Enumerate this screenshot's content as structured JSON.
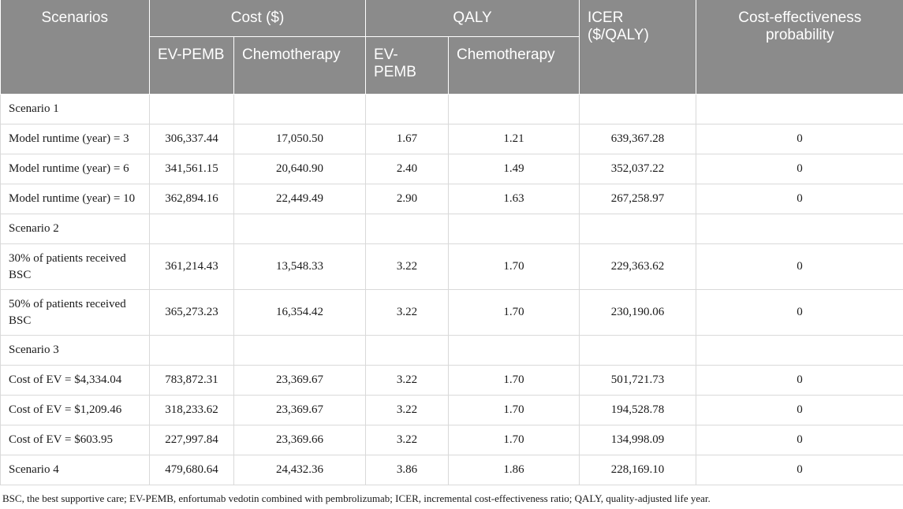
{
  "header": {
    "scenarios": "Scenarios",
    "cost": "Cost ($)",
    "qaly": "QALY",
    "icer": "ICER ($/QALY)",
    "probability": "Cost-effectiveness probability",
    "sub": {
      "cost_evpemb": "EV-PEMB",
      "cost_chemo": "Chemotherapy",
      "qaly_evpemb": "EV-PEMB",
      "qaly_chemo": "Chemotherapy"
    }
  },
  "rows": [
    {
      "label": "Scenario 1",
      "cost_evpemb": "",
      "cost_chemo": "",
      "qaly_evpemb": "",
      "qaly_chemo": "",
      "icer": "",
      "prob": ""
    },
    {
      "label": "Model runtime (year) = 3",
      "cost_evpemb": "306,337.44",
      "cost_chemo": "17,050.50",
      "qaly_evpemb": "1.67",
      "qaly_chemo": "1.21",
      "icer": "639,367.28",
      "prob": "0"
    },
    {
      "label": "Model runtime (year) = 6",
      "cost_evpemb": "341,561.15",
      "cost_chemo": "20,640.90",
      "qaly_evpemb": "2.40",
      "qaly_chemo": "1.49",
      "icer": "352,037.22",
      "prob": "0"
    },
    {
      "label": "Model runtime (year) = 10",
      "cost_evpemb": "362,894.16",
      "cost_chemo": "22,449.49",
      "qaly_evpemb": "2.90",
      "qaly_chemo": "1.63",
      "icer": "267,258.97",
      "prob": "0"
    },
    {
      "label": "Scenario 2",
      "cost_evpemb": "",
      "cost_chemo": "",
      "qaly_evpemb": "",
      "qaly_chemo": "",
      "icer": "",
      "prob": ""
    },
    {
      "label": "30% of patients received BSC",
      "cost_evpemb": "361,214.43",
      "cost_chemo": "13,548.33",
      "qaly_evpemb": "3.22",
      "qaly_chemo": "1.70",
      "icer": "229,363.62",
      "prob": "0"
    },
    {
      "label": "50% of patients received BSC",
      "cost_evpemb": "365,273.23",
      "cost_chemo": "16,354.42",
      "qaly_evpemb": "3.22",
      "qaly_chemo": "1.70",
      "icer": "230,190.06",
      "prob": "0"
    },
    {
      "label": "Scenario 3",
      "cost_evpemb": "",
      "cost_chemo": "",
      "qaly_evpemb": "",
      "qaly_chemo": "",
      "icer": "",
      "prob": ""
    },
    {
      "label": "Cost of EV = $4,334.04",
      "cost_evpemb": "783,872.31",
      "cost_chemo": "23,369.67",
      "qaly_evpemb": "3.22",
      "qaly_chemo": "1.70",
      "icer": "501,721.73",
      "prob": "0"
    },
    {
      "label": "Cost of EV = $1,209.46",
      "cost_evpemb": "318,233.62",
      "cost_chemo": "23,369.67",
      "qaly_evpemb": "3.22",
      "qaly_chemo": "1.70",
      "icer": "194,528.78",
      "prob": "0"
    },
    {
      "label": "Cost of EV = $603.95",
      "cost_evpemb": "227,997.84",
      "cost_chemo": "23,369.66",
      "qaly_evpemb": "3.22",
      "qaly_chemo": "1.70",
      "icer": "134,998.09",
      "prob": "0"
    },
    {
      "label": "Scenario 4",
      "cost_evpemb": "479,680.64",
      "cost_chemo": "24,432.36",
      "qaly_evpemb": "3.86",
      "qaly_chemo": "1.86",
      "icer": "228,169.10",
      "prob": "0"
    }
  ],
  "footnote": "BSC, the best supportive care; EV-PEMB, enfortumab vedotin combined with pembrolizumab; ICER, incremental cost-effectiveness ratio; QALY, quality-adjusted life year."
}
